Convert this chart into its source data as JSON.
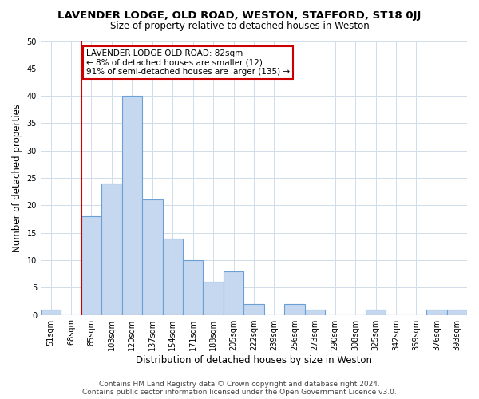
{
  "title": "LAVENDER LODGE, OLD ROAD, WESTON, STAFFORD, ST18 0JJ",
  "subtitle": "Size of property relative to detached houses in Weston",
  "xlabel": "Distribution of detached houses by size in Weston",
  "ylabel": "Number of detached properties",
  "bar_labels": [
    "51sqm",
    "68sqm",
    "85sqm",
    "103sqm",
    "120sqm",
    "137sqm",
    "154sqm",
    "171sqm",
    "188sqm",
    "205sqm",
    "222sqm",
    "239sqm",
    "256sqm",
    "273sqm",
    "290sqm",
    "308sqm",
    "325sqm",
    "342sqm",
    "359sqm",
    "376sqm",
    "393sqm"
  ],
  "bar_values": [
    1,
    0,
    18,
    24,
    40,
    21,
    14,
    10,
    6,
    8,
    2,
    0,
    2,
    1,
    0,
    0,
    1,
    0,
    0,
    1,
    1
  ],
  "bar_color": "#c5d8f0",
  "bar_edge_color": "#6aa0d4",
  "subject_line_color": "#cc0000",
  "annotation_line1": "LAVENDER LODGE OLD ROAD: 82sqm",
  "annotation_line2": "← 8% of detached houses are smaller (12)",
  "annotation_line3": "91% of semi-detached houses are larger (135) →",
  "annotation_box_color": "#ffffff",
  "annotation_box_edge_color": "#cc0000",
  "ylim": [
    0,
    50
  ],
  "yticks": [
    0,
    5,
    10,
    15,
    20,
    25,
    30,
    35,
    40,
    45,
    50
  ],
  "footer_line1": "Contains HM Land Registry data © Crown copyright and database right 2024.",
  "footer_line2": "Contains public sector information licensed under the Open Government Licence v3.0.",
  "bg_color": "#ffffff",
  "grid_color": "#d0dce8",
  "title_fontsize": 9.5,
  "subtitle_fontsize": 8.5,
  "axis_label_fontsize": 8.5,
  "tick_fontsize": 7,
  "annotation_fontsize": 7.5,
  "footer_fontsize": 6.5
}
